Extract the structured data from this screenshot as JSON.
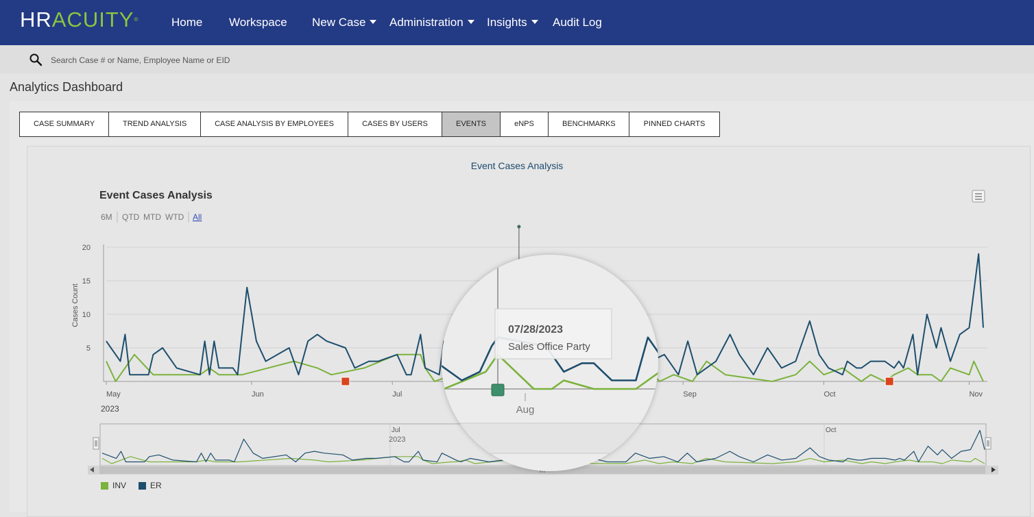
{
  "brand": {
    "logo_hr": "HR",
    "logo_acuity": "ACUITY",
    "trademark": "®"
  },
  "nav": {
    "home": "Home",
    "workspace": "Workspace",
    "new_case": "New Case",
    "administration": "Administration",
    "insights": "Insights",
    "audit_log": "Audit Log"
  },
  "search": {
    "placeholder": "Search Case # or Name, Employee Name or EID"
  },
  "page": {
    "title": "Analytics Dashboard"
  },
  "tabs": [
    {
      "label": "CASE SUMMARY"
    },
    {
      "label": "TREND ANALYSIS"
    },
    {
      "label": "CASE ANALYSIS BY EMPLOYEES"
    },
    {
      "label": "CASES BY USERS"
    },
    {
      "label": "EVENTS",
      "active": true
    },
    {
      "label": "eNPS"
    },
    {
      "label": "BENCHMARKS"
    },
    {
      "label": "PINNED CHARTS"
    }
  ],
  "card": {
    "title": "Event Cases Analysis"
  },
  "icons": {
    "search": "search-icon",
    "menu": "hamburger-menu-icon",
    "caret": "caret-down-icon",
    "nav_left": "arrow-left-icon",
    "nav_right": "arrow-right-icon",
    "flag": "event-flag-icon"
  },
  "colors": {
    "nav_bg": "#233a84",
    "logo_accent": "#8bc540",
    "inv": "#7bb23b",
    "er": "#1d4e6d",
    "flag_red": "#d9451f",
    "flag_green": "#3e8f6b",
    "active_tab": "#c4c4c4"
  },
  "chart_data": {
    "type": "line",
    "title": "Event Cases Analysis",
    "range_selector": {
      "buttons": [
        "6M",
        "QTD",
        "MTD",
        "WTD",
        "All"
      ],
      "selected": "All"
    },
    "ylabel": "Cases Count",
    "ylim": [
      0,
      20
    ],
    "yticks": [
      5,
      10,
      15,
      20
    ],
    "x_range": [
      "2023-05-01",
      "2023-11-04"
    ],
    "x_ticks": [
      "May",
      "Jun",
      "Jul",
      "Aug",
      "Sep",
      "Oct",
      "Nov"
    ],
    "year_label": "2023",
    "navigator": {
      "ticks": [
        "Jul",
        "Oct"
      ],
      "year_label": "2023"
    },
    "legend": {
      "position": "bottom-left",
      "items": [
        "INV",
        "ER"
      ]
    },
    "grid": true,
    "series": [
      {
        "name": "INV",
        "color": "#7bb23b",
        "points": [
          [
            "2023-05-01",
            3
          ],
          [
            "2023-05-03",
            0
          ],
          [
            "2023-05-07",
            4
          ],
          [
            "2023-05-11",
            1
          ],
          [
            "2023-05-15",
            1
          ],
          [
            "2023-05-21",
            1
          ],
          [
            "2023-05-23",
            2
          ],
          [
            "2023-05-25",
            1
          ],
          [
            "2023-05-30",
            1
          ],
          [
            "2023-06-10",
            3
          ],
          [
            "2023-06-15",
            2
          ],
          [
            "2023-06-18",
            1
          ],
          [
            "2023-06-25",
            2
          ],
          [
            "2023-07-02",
            4
          ],
          [
            "2023-07-07",
            4
          ],
          [
            "2023-07-08",
            2
          ],
          [
            "2023-07-10",
            0
          ],
          [
            "2023-07-14",
            1
          ],
          [
            "2023-07-15",
            1
          ],
          [
            "2023-07-17",
            2
          ],
          [
            "2023-07-19",
            0
          ],
          [
            "2023-07-26",
            2
          ],
          [
            "2023-07-28",
            4
          ],
          [
            "2023-08-03",
            0
          ],
          [
            "2023-08-06",
            0
          ],
          [
            "2023-08-08",
            1
          ],
          [
            "2023-08-13",
            0
          ],
          [
            "2023-08-20",
            0
          ],
          [
            "2023-08-24",
            2
          ],
          [
            "2023-08-27",
            0
          ],
          [
            "2023-08-30",
            1
          ],
          [
            "2023-09-03",
            0
          ],
          [
            "2023-09-06",
            3
          ],
          [
            "2023-09-10",
            1
          ],
          [
            "2023-09-20",
            0
          ],
          [
            "2023-09-25",
            1
          ],
          [
            "2023-09-28",
            3
          ],
          [
            "2023-10-01",
            1
          ],
          [
            "2023-10-05",
            2
          ],
          [
            "2023-10-09",
            0
          ],
          [
            "2023-10-11",
            1
          ],
          [
            "2023-10-14",
            0
          ],
          [
            "2023-10-16",
            1
          ],
          [
            "2023-10-19",
            2
          ],
          [
            "2023-10-21",
            1
          ],
          [
            "2023-10-24",
            1
          ],
          [
            "2023-10-26",
            0
          ],
          [
            "2023-10-28",
            2
          ],
          [
            "2023-11-01",
            1
          ],
          [
            "2023-11-02",
            3
          ],
          [
            "2023-11-04",
            0
          ]
        ]
      },
      {
        "name": "ER",
        "color": "#1d4e6d",
        "points": [
          [
            "2023-05-01",
            6
          ],
          [
            "2023-05-02",
            5
          ],
          [
            "2023-05-04",
            3
          ],
          [
            "2023-05-05",
            7
          ],
          [
            "2023-05-06",
            1
          ],
          [
            "2023-05-10",
            1
          ],
          [
            "2023-05-11",
            4
          ],
          [
            "2023-05-13",
            5
          ],
          [
            "2023-05-16",
            2
          ],
          [
            "2023-05-21",
            1
          ],
          [
            "2023-05-22",
            6
          ],
          [
            "2023-05-23",
            1
          ],
          [
            "2023-05-24",
            6
          ],
          [
            "2023-05-25",
            2
          ],
          [
            "2023-05-28",
            2
          ],
          [
            "2023-05-29",
            1
          ],
          [
            "2023-05-31",
            14
          ],
          [
            "2023-06-02",
            6
          ],
          [
            "2023-06-04",
            3
          ],
          [
            "2023-06-09",
            5
          ],
          [
            "2023-06-11",
            1
          ],
          [
            "2023-06-13",
            6
          ],
          [
            "2023-06-15",
            7
          ],
          [
            "2023-06-17",
            6
          ],
          [
            "2023-06-21",
            5
          ],
          [
            "2023-06-23",
            2
          ],
          [
            "2023-06-26",
            3
          ],
          [
            "2023-06-28",
            3
          ],
          [
            "2023-07-02",
            4
          ],
          [
            "2023-07-04",
            1
          ],
          [
            "2023-07-05",
            1
          ],
          [
            "2023-07-07",
            7
          ],
          [
            "2023-07-08",
            2
          ],
          [
            "2023-07-11",
            1
          ],
          [
            "2023-07-12",
            6
          ],
          [
            "2023-07-15",
            2
          ],
          [
            "2023-07-16",
            1
          ],
          [
            "2023-07-18",
            3
          ],
          [
            "2023-07-22",
            1
          ],
          [
            "2023-07-25",
            2
          ],
          [
            "2023-07-27",
            5
          ],
          [
            "2023-07-28",
            6
          ],
          [
            "2023-08-05",
            5
          ],
          [
            "2023-08-08",
            2
          ],
          [
            "2023-08-11",
            3
          ],
          [
            "2023-08-13",
            3
          ],
          [
            "2023-08-16",
            1
          ],
          [
            "2023-08-20",
            1
          ],
          [
            "2023-08-22",
            6
          ],
          [
            "2023-08-25",
            3
          ],
          [
            "2023-08-28",
            4
          ],
          [
            "2023-08-31",
            1
          ],
          [
            "2023-09-02",
            6
          ],
          [
            "2023-09-04",
            1
          ],
          [
            "2023-09-08",
            3
          ],
          [
            "2023-09-11",
            7
          ],
          [
            "2023-09-13",
            4
          ],
          [
            "2023-09-16",
            1
          ],
          [
            "2023-09-19",
            5
          ],
          [
            "2023-09-22",
            2
          ],
          [
            "2023-09-25",
            3
          ],
          [
            "2023-09-28",
            9
          ],
          [
            "2023-09-30",
            4
          ],
          [
            "2023-10-02",
            2
          ],
          [
            "2023-10-05",
            1
          ],
          [
            "2023-10-06",
            3
          ],
          [
            "2023-10-08",
            2
          ],
          [
            "2023-10-09",
            2
          ],
          [
            "2023-10-11",
            3
          ],
          [
            "2023-10-14",
            3
          ],
          [
            "2023-10-16",
            2
          ],
          [
            "2023-10-17",
            3
          ],
          [
            "2023-10-18",
            2
          ],
          [
            "2023-10-20",
            7
          ],
          [
            "2023-10-21",
            1
          ],
          [
            "2023-10-23",
            10
          ],
          [
            "2023-10-25",
            5
          ],
          [
            "2023-10-26",
            8
          ],
          [
            "2023-10-28",
            3
          ],
          [
            "2023-10-30",
            7
          ],
          [
            "2023-11-01",
            8
          ],
          [
            "2023-11-03",
            19
          ],
          [
            "2023-11-04",
            8
          ]
        ]
      }
    ],
    "flags": [
      {
        "date": "2023-06-21",
        "color": "#d9451f"
      },
      {
        "date": "2023-07-28",
        "color": "#3e8f6b",
        "tooltip_date": "07/28/2023",
        "tooltip_text": "Sales Office Party"
      },
      {
        "date": "2023-10-15",
        "color": "#d9451f"
      }
    ],
    "zoom": {
      "center_date": "2023-07-28",
      "tick_label": "Aug"
    }
  }
}
